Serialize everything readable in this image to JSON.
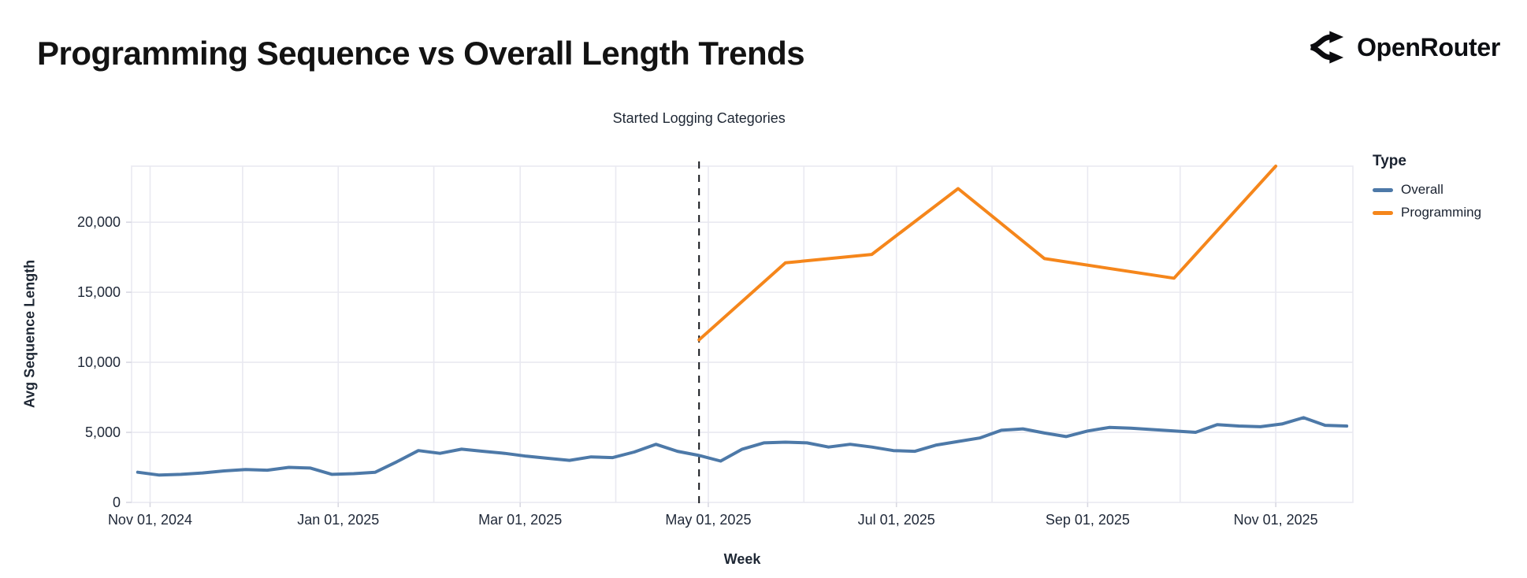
{
  "header": {
    "brand": "OpenRouter"
  },
  "chart_data": {
    "type": "line",
    "title": "Programming Sequence vs Overall Length Trends",
    "xlabel": "Week",
    "ylabel": "Avg Sequence Length",
    "legend_title": "Type",
    "legend_position": "right",
    "grid": true,
    "background": "#ffffff",
    "gridline_color": "#e9e9f1",
    "tick_color": "#d8d8e2",
    "label_color": "#1f2838",
    "x_domain": [
      "2024-10-26",
      "2025-11-26"
    ],
    "ylim": [
      0,
      24000
    ],
    "y_ticks": [
      0,
      5000,
      10000,
      15000,
      20000
    ],
    "y_tick_labels": [
      "0",
      "5,000",
      "10,000",
      "15,000",
      "20,000"
    ],
    "x_ticks": [
      "2024-11-01",
      "2025-01-01",
      "2025-03-01",
      "2025-05-01",
      "2025-07-01",
      "2025-09-01",
      "2025-11-01"
    ],
    "x_tick_labels": [
      "Nov 01, 2024",
      "Jan 01, 2025",
      "Mar 01, 2025",
      "May 01, 2025",
      "Jul 01, 2025",
      "Sep 01, 2025",
      "Nov 01, 2025"
    ],
    "month_gridlines": [
      "2024-11-01",
      "2024-12-01",
      "2025-01-01",
      "2025-02-01",
      "2025-03-01",
      "2025-04-01",
      "2025-05-01",
      "2025-06-01",
      "2025-07-01",
      "2025-08-01",
      "2025-09-01",
      "2025-10-01",
      "2025-11-01"
    ],
    "annotation": {
      "text": "Started Logging Categories",
      "date": "2025-04-28",
      "line_style": "dashed",
      "line_color": "#16181d"
    },
    "series": [
      {
        "name": "Overall",
        "color": "#4d79a8",
        "points": [
          [
            "2024-10-28",
            2150
          ],
          [
            "2024-11-04",
            1950
          ],
          [
            "2024-11-11",
            2000
          ],
          [
            "2024-11-18",
            2100
          ],
          [
            "2024-11-25",
            2250
          ],
          [
            "2024-12-02",
            2350
          ],
          [
            "2024-12-09",
            2300
          ],
          [
            "2024-12-16",
            2500
          ],
          [
            "2024-12-23",
            2450
          ],
          [
            "2024-12-30",
            2000
          ],
          [
            "2025-01-06",
            2050
          ],
          [
            "2025-01-13",
            2150
          ],
          [
            "2025-01-20",
            2900
          ],
          [
            "2025-01-27",
            3700
          ],
          [
            "2025-02-03",
            3500
          ],
          [
            "2025-02-10",
            3800
          ],
          [
            "2025-02-17",
            3650
          ],
          [
            "2025-02-24",
            3500
          ],
          [
            "2025-03-03",
            3300
          ],
          [
            "2025-03-10",
            3150
          ],
          [
            "2025-03-17",
            3000
          ],
          [
            "2025-03-24",
            3250
          ],
          [
            "2025-03-31",
            3200
          ],
          [
            "2025-04-07",
            3600
          ],
          [
            "2025-04-14",
            4150
          ],
          [
            "2025-04-21",
            3650
          ],
          [
            "2025-04-28",
            3350
          ],
          [
            "2025-05-05",
            2950
          ],
          [
            "2025-05-12",
            3800
          ],
          [
            "2025-05-19",
            4250
          ],
          [
            "2025-05-26",
            4300
          ],
          [
            "2025-06-02",
            4250
          ],
          [
            "2025-06-09",
            3950
          ],
          [
            "2025-06-16",
            4150
          ],
          [
            "2025-06-23",
            3950
          ],
          [
            "2025-06-30",
            3700
          ],
          [
            "2025-07-07",
            3650
          ],
          [
            "2025-07-14",
            4100
          ],
          [
            "2025-07-21",
            4350
          ],
          [
            "2025-07-28",
            4600
          ],
          [
            "2025-08-04",
            5150
          ],
          [
            "2025-08-11",
            5250
          ],
          [
            "2025-08-18",
            4950
          ],
          [
            "2025-08-25",
            4700
          ],
          [
            "2025-09-01",
            5100
          ],
          [
            "2025-09-08",
            5350
          ],
          [
            "2025-09-15",
            5300
          ],
          [
            "2025-09-22",
            5200
          ],
          [
            "2025-09-29",
            5100
          ],
          [
            "2025-10-06",
            5000
          ],
          [
            "2025-10-13",
            5550
          ],
          [
            "2025-10-20",
            5450
          ],
          [
            "2025-10-27",
            5400
          ],
          [
            "2025-11-03",
            5600
          ],
          [
            "2025-11-10",
            6050
          ],
          [
            "2025-11-17",
            5500
          ],
          [
            "2025-11-24",
            5450
          ]
        ]
      },
      {
        "name": "Programming",
        "color": "#f5861b",
        "points": [
          [
            "2025-04-28",
            11600
          ],
          [
            "2025-05-26",
            17100
          ],
          [
            "2025-06-23",
            17700
          ],
          [
            "2025-07-21",
            22400
          ],
          [
            "2025-08-18",
            17400
          ],
          [
            "2025-09-29",
            16000
          ],
          [
            "2025-11-01",
            24000
          ]
        ]
      }
    ]
  }
}
